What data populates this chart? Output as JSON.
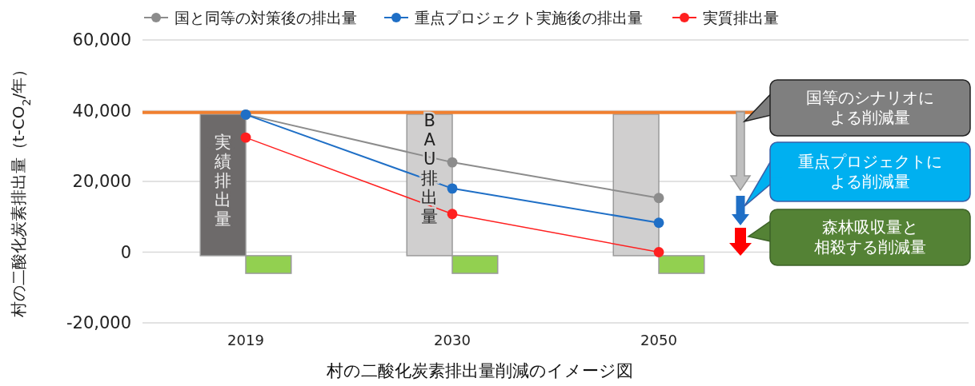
{
  "chart_data": {
    "type": "bar",
    "categories": [
      "2019",
      "2030",
      "2050",
      null
    ],
    "series": [
      {
        "colors": [
          "#6d6a6a",
          "#d0cfcf",
          "#d0cfcf",
          null
        ],
        "base": [
          -1000,
          -1000,
          -1000,
          null
        ],
        "values": [
          40000,
          40000,
          40000,
          null
        ]
      },
      {
        "color": "#92d050",
        "base": [
          -1000,
          -1000,
          -1000,
          null
        ],
        "values": [
          -5000,
          -5000,
          -5000,
          null
        ]
      },
      {
        "type": "line",
        "name": "国と同等の対策後の排出量",
        "color": "#8c8c8c",
        "values": [
          38900,
          25400,
          15300,
          null
        ]
      },
      {
        "type": "line",
        "name": "重点プロジェクト実施後の排出量",
        "color": "#1f6fc6",
        "values": [
          38900,
          18000,
          8300,
          null
        ]
      },
      {
        "type": "line",
        "name": "実質排出量",
        "color": "#ff2020",
        "values": [
          32400,
          10800,
          0,
          null
        ]
      }
    ],
    "ref_lines": [
      {
        "axis": "y",
        "value": 39500,
        "color": "#f08030"
      }
    ],
    "ylim": [
      -20000,
      60000
    ],
    "yticks": [
      {
        "value": -20000,
        "label": "-20,000"
      },
      0,
      {
        "value": 20000,
        "label": "20,000"
      },
      {
        "value": 40000,
        "label": "40,000"
      },
      {
        "value": 60000,
        "label": "60,000"
      }
    ],
    "grid": "y",
    "legend": "top",
    "marker": "circle",
    "ylabel": "村の二酸化炭素排出量（t-CO$_{2}$/年）",
    "xlabel": "村の二酸化炭素排出量削減のイメージ図",
    "annotations": [
      {
        "text": "実績排出量",
        "x": "2019",
        "y": 20000
      },
      {
        "text": "BAU排出量",
        "x": "2030",
        "y": 23500
      },
      "国等のシナリオによる削減量",
      "重点プロジェクトによる削減量",
      "森林吸収量と相殺する削減量"
    ]
  }
}
